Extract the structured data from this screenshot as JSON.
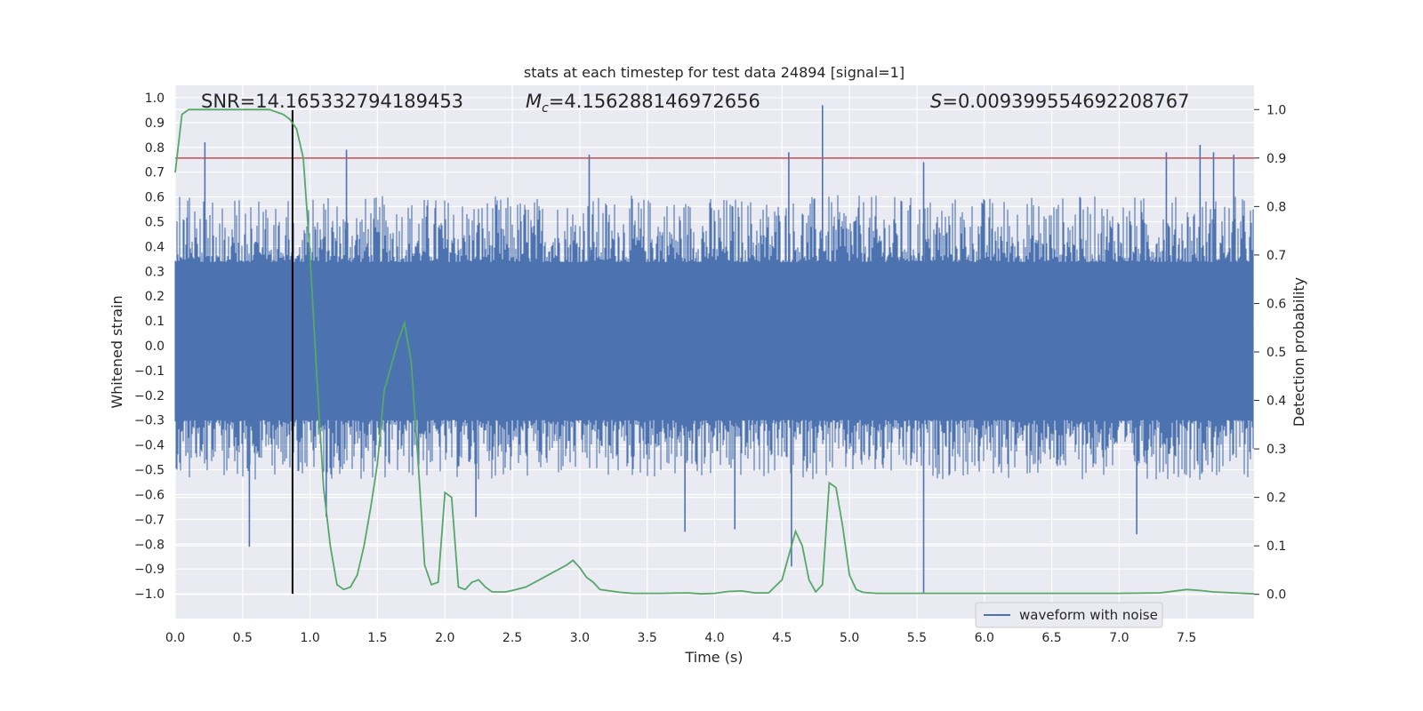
{
  "chart_data": {
    "type": "line",
    "title": "stats at each timestep for test data 24894 [signal=1]",
    "xlabel": "Time (s)",
    "ylabel_left": "Whitened strain",
    "ylabel_right": "Detection probability",
    "xlim": [
      0.0,
      8.0
    ],
    "ylim_left": [
      -1.1,
      1.05
    ],
    "ylim_right": [
      -0.05,
      1.05
    ],
    "xticks": [
      "0.0",
      "0.5",
      "1.0",
      "1.5",
      "2.0",
      "2.5",
      "3.0",
      "3.5",
      "4.0",
      "4.5",
      "5.0",
      "5.5",
      "6.0",
      "6.5",
      "7.0",
      "7.5"
    ],
    "yticks_left": [
      "1.0",
      "0.9",
      "0.8",
      "0.7",
      "0.6",
      "0.5",
      "0.4",
      "0.3",
      "0.2",
      "0.1",
      "0.0",
      "-0.1",
      "-0.2",
      "-0.3",
      "-0.4",
      "-0.5",
      "-0.6",
      "-0.7",
      "-0.8",
      "-0.9",
      "-1.0"
    ],
    "yticks_right": [
      "1.0",
      "0.9",
      "0.8",
      "0.7",
      "0.6",
      "0.5",
      "0.4",
      "0.3",
      "0.2",
      "0.1",
      "0.0"
    ],
    "annotations": {
      "snr": "SNR=14.165332794189453",
      "mc_symbol": "M",
      "mc_subscript": "c",
      "mc_value": "=4.156288146972656",
      "s_symbol": "S",
      "s_value": "=0.009399554692208767"
    },
    "threshold": {
      "value": 0.9,
      "axis": "right",
      "color": "#c44e52"
    },
    "marker_line": {
      "x": 0.87,
      "y_from": -1.0,
      "y_to": 0.95,
      "color": "#000000"
    },
    "waveform": {
      "name": "waveform with noise",
      "color": "#4c72b0",
      "typical_min": -0.4,
      "typical_max": 0.45,
      "spikes": [
        {
          "x": 0.22,
          "y": 0.82
        },
        {
          "x": 0.55,
          "y": -0.81
        },
        {
          "x": 1.27,
          "y": 0.79
        },
        {
          "x": 3.07,
          "y": 0.77
        },
        {
          "x": 4.15,
          "y": -0.74
        },
        {
          "x": 4.55,
          "y": 0.78
        },
        {
          "x": 4.57,
          "y": -0.89
        },
        {
          "x": 4.8,
          "y": 0.97
        },
        {
          "x": 5.55,
          "y": 0.74
        },
        {
          "x": 5.55,
          "y": -1.0
        },
        {
          "x": 7.35,
          "y": 0.78
        },
        {
          "x": 7.6,
          "y": 0.81
        },
        {
          "x": 7.7,
          "y": 0.78
        },
        {
          "x": 7.85,
          "y": 0.77
        },
        {
          "x": 7.13,
          "y": -0.76
        },
        {
          "x": 3.78,
          "y": -0.75
        },
        {
          "x": 2.23,
          "y": -0.69
        },
        {
          "x": 1.12,
          "y": -0.69
        }
      ]
    },
    "probability": {
      "name": "detection probability",
      "color": "#55a868",
      "x": [
        0.0,
        0.05,
        0.1,
        0.15,
        0.2,
        0.3,
        0.4,
        0.5,
        0.6,
        0.7,
        0.8,
        0.85,
        0.9,
        0.95,
        1.0,
        1.05,
        1.1,
        1.15,
        1.2,
        1.25,
        1.3,
        1.35,
        1.4,
        1.45,
        1.5,
        1.55,
        1.6,
        1.65,
        1.7,
        1.75,
        1.8,
        1.85,
        1.9,
        1.95,
        2.0,
        2.05,
        2.1,
        2.15,
        2.2,
        2.25,
        2.3,
        2.35,
        2.4,
        2.45,
        2.5,
        2.6,
        2.7,
        2.8,
        2.9,
        2.95,
        3.0,
        3.05,
        3.1,
        3.15,
        3.2,
        3.3,
        3.4,
        3.6,
        3.8,
        3.9,
        4.0,
        4.1,
        4.2,
        4.3,
        4.4,
        4.5,
        4.6,
        4.65,
        4.7,
        4.75,
        4.8,
        4.85,
        4.9,
        4.95,
        5.0,
        5.05,
        5.1,
        5.2,
        5.4,
        5.6,
        5.8,
        6.0,
        6.5,
        7.0,
        7.3,
        7.5,
        7.6,
        7.7,
        8.0
      ],
      "y": [
        0.87,
        0.99,
        1.0,
        1.0,
        1.0,
        1.0,
        1.0,
        1.0,
        1.0,
        1.0,
        0.99,
        0.98,
        0.96,
        0.9,
        0.7,
        0.45,
        0.22,
        0.1,
        0.02,
        0.01,
        0.015,
        0.04,
        0.1,
        0.18,
        0.27,
        0.42,
        0.47,
        0.52,
        0.56,
        0.48,
        0.28,
        0.06,
        0.02,
        0.025,
        0.21,
        0.2,
        0.015,
        0.01,
        0.025,
        0.03,
        0.015,
        0.005,
        0.005,
        0.005,
        0.008,
        0.015,
        0.03,
        0.045,
        0.06,
        0.07,
        0.055,
        0.035,
        0.025,
        0.01,
        0.008,
        0.004,
        0.002,
        0.002,
        0.003,
        0.001,
        0.002,
        0.006,
        0.007,
        0.003,
        0.003,
        0.03,
        0.13,
        0.1,
        0.03,
        0.005,
        0.02,
        0.23,
        0.22,
        0.14,
        0.04,
        0.01,
        0.004,
        0.002,
        0.002,
        0.002,
        0.002,
        0.002,
        0.002,
        0.002,
        0.003,
        0.01,
        0.008,
        0.005,
        0.001
      ]
    },
    "legend": {
      "placement": "bottom-right",
      "entries": [
        "waveform with noise"
      ]
    },
    "grid": true
  }
}
